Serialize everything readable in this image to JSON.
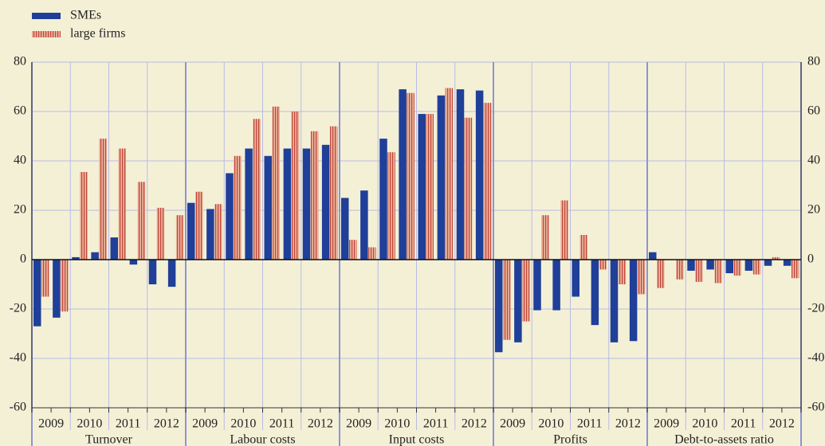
{
  "chart_data": {
    "type": "bar",
    "groups": [
      {
        "name": "Turnover",
        "years": [
          "2009",
          "2010",
          "2011",
          "2012"
        ]
      },
      {
        "name": "Labour costs",
        "years": [
          "2009",
          "2010",
          "2011",
          "2012"
        ]
      },
      {
        "name": "Input costs",
        "years": [
          "2009",
          "2010",
          "2011",
          "2012"
        ]
      },
      {
        "name": "Profits",
        "years": [
          "2009",
          "2010",
          "2011",
          "2012"
        ]
      },
      {
        "name": "Debt-to-assets ratio",
        "years": [
          "2009",
          "2010",
          "2011",
          "2012"
        ]
      }
    ],
    "series": [
      {
        "name": "SMEs",
        "color": "#1f3f99",
        "values": [
          -27,
          -23.5,
          1,
          3,
          9,
          -2,
          -10,
          -11,
          23,
          20.5,
          35,
          45,
          42,
          45,
          45,
          46.5,
          25,
          28,
          49,
          69,
          59,
          66.5,
          69,
          68.5,
          -37.5,
          -33.5,
          -20.5,
          -20.5,
          -15,
          -26.5,
          -33.5,
          -33,
          3,
          0,
          -4.5,
          -4,
          -5.5,
          -4.5,
          -2.5,
          -2.5
        ]
      },
      {
        "name": "large firms",
        "color": "#eab39b",
        "hatch_color": "#c0463a",
        "values": [
          -15,
          -21,
          35.5,
          49,
          45,
          31.5,
          21,
          18,
          27.5,
          22.5,
          42,
          57,
          62,
          60,
          52,
          54,
          8,
          5,
          43.5,
          67.5,
          59,
          69.5,
          57.5,
          63.5,
          -32.5,
          -25,
          18,
          24,
          10,
          -4,
          -10,
          -14,
          -11.5,
          -8,
          -9,
          -9.5,
          -6.5,
          -6,
          1,
          -7.5
        ]
      }
    ],
    "ylim": [
      -60,
      80
    ],
    "yticks": [
      -60,
      -40,
      -20,
      0,
      20,
      40,
      60,
      80
    ],
    "grid": true
  }
}
